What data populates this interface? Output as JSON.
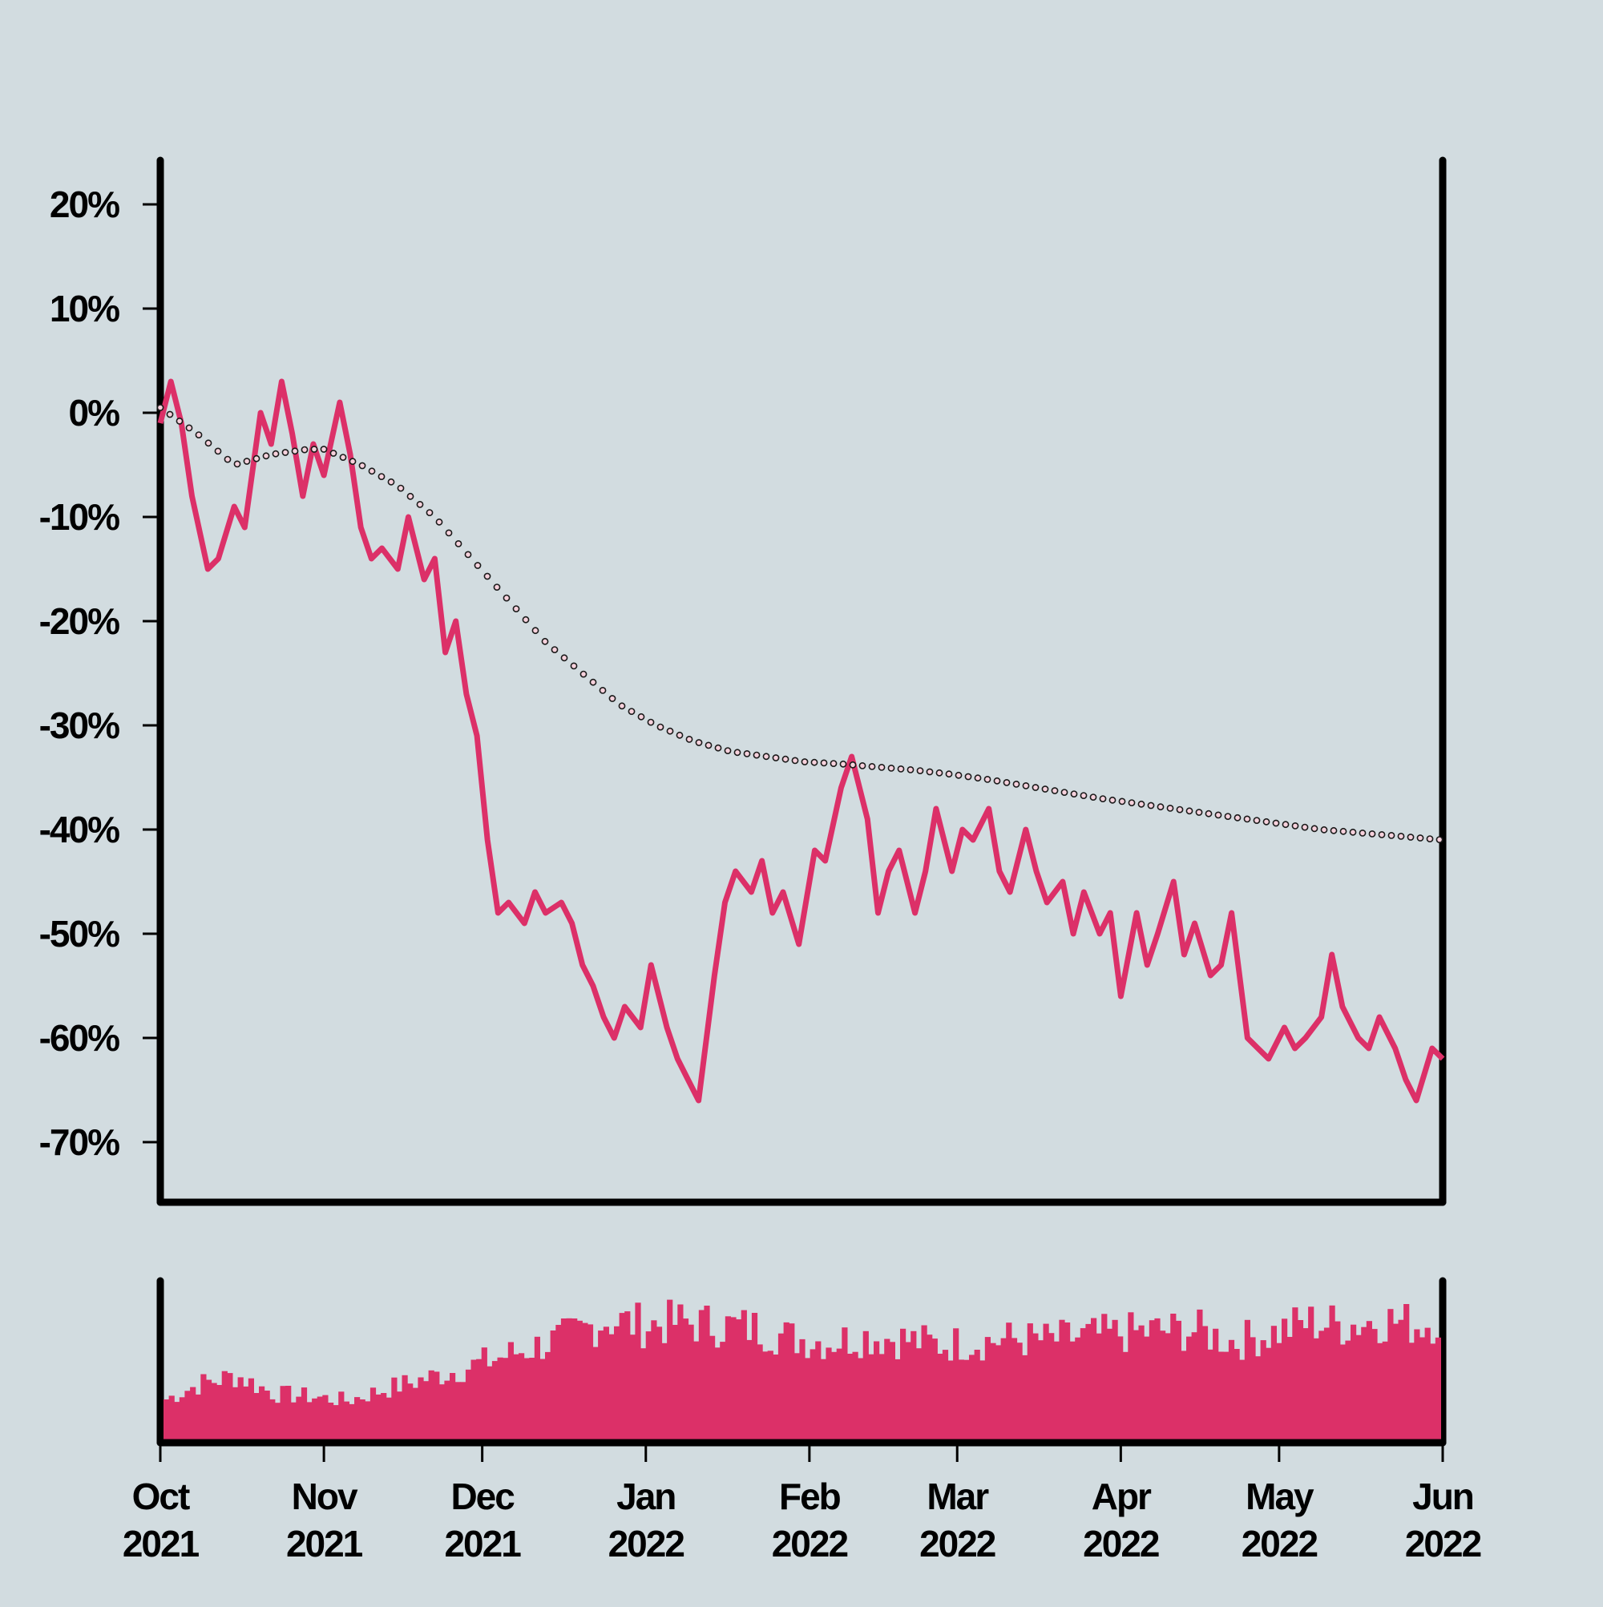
{
  "colors": {
    "background": "#d2dce0",
    "price_line": "#dc3068",
    "volume_bars": "#dc3068",
    "trend_marker_fill": "#f7d1dc",
    "trend_marker_stroke": "#1a1a1a",
    "axis": "#000000"
  },
  "chart_data": [
    {
      "id": "price-panel",
      "type": "line",
      "title": "",
      "xlabel": "",
      "ylabel": "",
      "y_unit": "%",
      "ylim": [
        -75,
        24
      ],
      "yticks": [
        20,
        10,
        0,
        -10,
        -20,
        -30,
        -40,
        -50,
        -60,
        -70
      ],
      "ytick_labels": [
        "20%",
        "10%",
        "0%",
        "-10%",
        "-20%",
        "-30%",
        "-40%",
        "-50%",
        "-60%",
        "-70%"
      ],
      "x_range": [
        "2021-10-01",
        "2022-06-01"
      ],
      "grid": false,
      "series": [
        {
          "style": "solid-line",
          "x": [
            "2021-10-01",
            "2021-10-03",
            "2021-10-05",
            "2021-10-07",
            "2021-10-10",
            "2021-10-12",
            "2021-10-15",
            "2021-10-17",
            "2021-10-20",
            "2021-10-22",
            "2021-10-24",
            "2021-10-26",
            "2021-10-28",
            "2021-10-30",
            "2021-11-01",
            "2021-11-04",
            "2021-11-06",
            "2021-11-08",
            "2021-11-10",
            "2021-11-12",
            "2021-11-15",
            "2021-11-17",
            "2021-11-20",
            "2021-11-22",
            "2021-11-24",
            "2021-11-26",
            "2021-11-28",
            "2021-11-30",
            "2021-12-02",
            "2021-12-04",
            "2021-12-06",
            "2021-12-09",
            "2021-12-11",
            "2021-12-13",
            "2021-12-16",
            "2021-12-18",
            "2021-12-20",
            "2021-12-22",
            "2021-12-24",
            "2021-12-26",
            "2021-12-28",
            "2021-12-31",
            "2022-01-02",
            "2022-01-05",
            "2022-01-07",
            "2022-01-09",
            "2022-01-11",
            "2022-01-14",
            "2022-01-16",
            "2022-01-18",
            "2022-01-21",
            "2022-01-23",
            "2022-01-25",
            "2022-01-27",
            "2022-01-30",
            "2022-02-02",
            "2022-02-04",
            "2022-02-07",
            "2022-02-09",
            "2022-02-12",
            "2022-02-14",
            "2022-02-16",
            "2022-02-18",
            "2022-02-21",
            "2022-02-23",
            "2022-02-25",
            "2022-02-28",
            "2022-03-02",
            "2022-03-04",
            "2022-03-07",
            "2022-03-09",
            "2022-03-11",
            "2022-03-14",
            "2022-03-16",
            "2022-03-18",
            "2022-03-21",
            "2022-03-23",
            "2022-03-25",
            "2022-03-28",
            "2022-03-30",
            "2022-04-01",
            "2022-04-04",
            "2022-04-06",
            "2022-04-08",
            "2022-04-11",
            "2022-04-13",
            "2022-04-15",
            "2022-04-18",
            "2022-04-20",
            "2022-04-22",
            "2022-04-25",
            "2022-04-27",
            "2022-04-29",
            "2022-05-02",
            "2022-05-04",
            "2022-05-06",
            "2022-05-09",
            "2022-05-11",
            "2022-05-13",
            "2022-05-16",
            "2022-05-18",
            "2022-05-20",
            "2022-05-23",
            "2022-05-25",
            "2022-05-27",
            "2022-05-30",
            "2022-06-01"
          ],
          "values": [
            -1,
            3,
            -1,
            -8,
            -15,
            -14,
            -9,
            -11,
            0,
            -3,
            3,
            -2,
            -8,
            -3,
            -6,
            1,
            -4,
            -11,
            -14,
            -13,
            -15,
            -10,
            -16,
            -14,
            -23,
            -20,
            -27,
            -31,
            -41,
            -48,
            -47,
            -49,
            -46,
            -48,
            -47,
            -49,
            -53,
            -55,
            -58,
            -60,
            -57,
            -59,
            -53,
            -59,
            -62,
            -64,
            -66,
            -54,
            -47,
            -44,
            -46,
            -43,
            -48,
            -46,
            -51,
            -42,
            -43,
            -36,
            -33,
            -39,
            -48,
            -44,
            -42,
            -48,
            -44,
            -38,
            -44,
            -40,
            -41,
            -38,
            -44,
            -46,
            -40,
            -44,
            -47,
            -45,
            -50,
            -46,
            -50,
            -48,
            -56,
            -48,
            -53,
            -50,
            -45,
            -52,
            -49,
            -54,
            -53,
            -48,
            -60,
            -61,
            -62,
            -59,
            -61,
            -60,
            -58,
            -52,
            -57,
            -60,
            -61,
            -58,
            -61,
            -64,
            -66,
            -61,
            -62
          ]
        },
        {
          "style": "dotted-markers",
          "x": [
            "2021-10-01",
            "2021-10-08",
            "2021-10-15",
            "2021-10-22",
            "2021-10-29",
            "2021-11-01",
            "2021-11-08",
            "2021-11-15",
            "2021-11-22",
            "2021-11-29",
            "2021-12-06",
            "2021-12-13",
            "2021-12-20",
            "2021-12-27",
            "2022-01-03",
            "2022-01-10",
            "2022-01-17",
            "2022-01-24",
            "2022-01-31",
            "2022-02-07",
            "2022-02-14",
            "2022-02-21",
            "2022-02-28",
            "2022-03-07",
            "2022-03-14",
            "2022-03-21",
            "2022-03-28",
            "2022-04-04",
            "2022-04-11",
            "2022-04-18",
            "2022-04-25",
            "2022-05-02",
            "2022-05-09",
            "2022-05-16",
            "2022-05-23",
            "2022-06-01"
          ],
          "values": [
            0.5,
            -2,
            -5,
            -4,
            -3.5,
            -3.5,
            -5,
            -7,
            -10,
            -14,
            -18,
            -22,
            -25,
            -28,
            -30,
            -31.5,
            -32.5,
            -33,
            -33.5,
            -33.7,
            -34,
            -34.3,
            -34.7,
            -35.2,
            -35.8,
            -36.4,
            -37,
            -37.5,
            -38,
            -38.5,
            -39,
            -39.5,
            -40,
            -40.3,
            -40.6,
            -41
          ]
        }
      ]
    },
    {
      "id": "volume-panel",
      "type": "bar",
      "title": "",
      "xlabel": "",
      "ylabel": "",
      "ylim": [
        0,
        1
      ],
      "grid": false,
      "series": [
        {
          "style": "bars",
          "x": [
            "2021-10-01",
            "2021-10-08",
            "2021-10-15",
            "2021-10-22",
            "2021-10-29",
            "2021-11-05",
            "2021-11-12",
            "2021-11-19",
            "2021-11-26",
            "2021-12-03",
            "2021-12-10",
            "2021-12-17",
            "2021-12-24",
            "2021-12-31",
            "2022-01-07",
            "2022-01-14",
            "2022-01-21",
            "2022-01-28",
            "2022-02-04",
            "2022-02-11",
            "2022-02-18",
            "2022-02-25",
            "2022-03-04",
            "2022-03-11",
            "2022-03-18",
            "2022-03-25",
            "2022-04-01",
            "2022-04-08",
            "2022-04-15",
            "2022-04-22",
            "2022-04-29",
            "2022-05-06",
            "2022-05-13",
            "2022-05-20",
            "2022-05-27",
            "2022-06-01"
          ],
          "values": [
            0.3,
            0.42,
            0.48,
            0.35,
            0.33,
            0.3,
            0.38,
            0.45,
            0.52,
            0.6,
            0.68,
            0.76,
            0.88,
            0.84,
            0.86,
            0.84,
            0.82,
            0.75,
            0.72,
            0.76,
            0.74,
            0.7,
            0.72,
            0.74,
            0.73,
            0.76,
            0.78,
            0.8,
            0.8,
            0.72,
            0.78,
            0.86,
            0.84,
            0.88,
            0.84,
            0.9
          ]
        }
      ]
    }
  ],
  "x_axis": {
    "ticks": [
      {
        "date": "2021-10-01",
        "month": "Oct",
        "year": "2021"
      },
      {
        "date": "2021-11-01",
        "month": "Nov",
        "year": "2021"
      },
      {
        "date": "2021-12-01",
        "month": "Dec",
        "year": "2021"
      },
      {
        "date": "2022-01-01",
        "month": "Jan",
        "year": "2022"
      },
      {
        "date": "2022-02-01",
        "month": "Feb",
        "year": "2022"
      },
      {
        "date": "2022-03-01",
        "month": "Mar",
        "year": "2022"
      },
      {
        "date": "2022-04-01",
        "month": "Apr",
        "year": "2022"
      },
      {
        "date": "2022-05-01",
        "month": "May",
        "year": "2022"
      },
      {
        "date": "2022-06-01",
        "month": "Jun",
        "year": "2022"
      }
    ]
  }
}
